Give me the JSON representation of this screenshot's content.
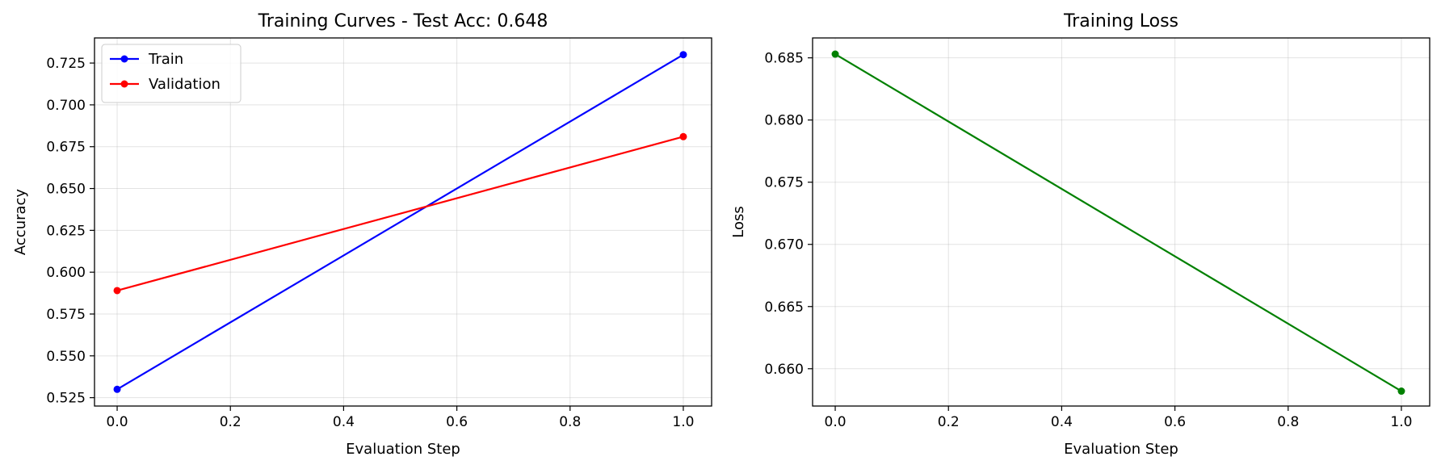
{
  "chart_data": [
    {
      "type": "line",
      "title": "Training Curves - Test Acc: 0.648",
      "xlabel": "Evaluation Step",
      "ylabel": "Accuracy",
      "xlim": [
        -0.04,
        1.05
      ],
      "ylim": [
        0.52,
        0.74
      ],
      "xticks": [
        0.0,
        0.2,
        0.4,
        0.6,
        0.8,
        1.0
      ],
      "xtick_labels": [
        "0.0",
        "0.2",
        "0.4",
        "0.6",
        "0.8",
        "1.0"
      ],
      "yticks": [
        0.525,
        0.55,
        0.575,
        0.6,
        0.625,
        0.65,
        0.675,
        0.7,
        0.725
      ],
      "ytick_labels": [
        "0.525",
        "0.550",
        "0.575",
        "0.600",
        "0.625",
        "0.650",
        "0.675",
        "0.700",
        "0.725"
      ],
      "grid": true,
      "legend": "top-left",
      "x": [
        0,
        1
      ],
      "series": [
        {
          "name": "Train",
          "values": [
            0.53,
            0.73
          ],
          "color": "#0000ff"
        },
        {
          "name": "Validation",
          "values": [
            0.589,
            0.681
          ],
          "color": "#ff0000"
        }
      ]
    },
    {
      "type": "line",
      "title": "Training Loss",
      "xlabel": "Evaluation Step",
      "ylabel": "Loss",
      "xlim": [
        -0.04,
        1.05
      ],
      "ylim": [
        0.657,
        0.6866
      ],
      "xticks": [
        0.0,
        0.2,
        0.4,
        0.6,
        0.8,
        1.0
      ],
      "xtick_labels": [
        "0.0",
        "0.2",
        "0.4",
        "0.6",
        "0.8",
        "1.0"
      ],
      "yticks": [
        0.66,
        0.665,
        0.67,
        0.675,
        0.68,
        0.685
      ],
      "ytick_labels": [
        "0.660",
        "0.665",
        "0.670",
        "0.675",
        "0.680",
        "0.685"
      ],
      "grid": true,
      "legend": "none",
      "x": [
        0,
        1
      ],
      "series": [
        {
          "values": [
            0.6853,
            0.6582
          ],
          "color": "#008000"
        }
      ]
    }
  ]
}
